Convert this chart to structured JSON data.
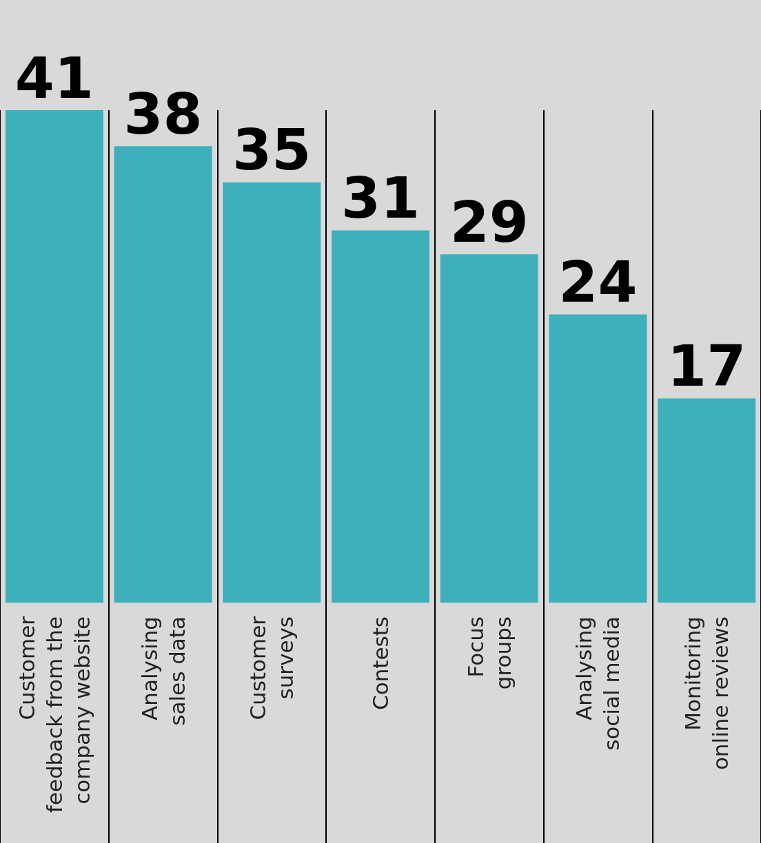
{
  "chart_data": {
    "type": "bar",
    "categories": [
      "Customer\nfeedback from the\ncompany website",
      "Analysing\nsales data",
      "Customer\nsurveys",
      "Contests",
      "Focus\ngroups",
      "Analysing\nsocial media",
      "Monitoring\nonline reviews"
    ],
    "values": [
      41,
      38,
      35,
      31,
      29,
      24,
      17
    ],
    "color": "#3db0bc",
    "data_labels": true,
    "grid": "x"
  }
}
